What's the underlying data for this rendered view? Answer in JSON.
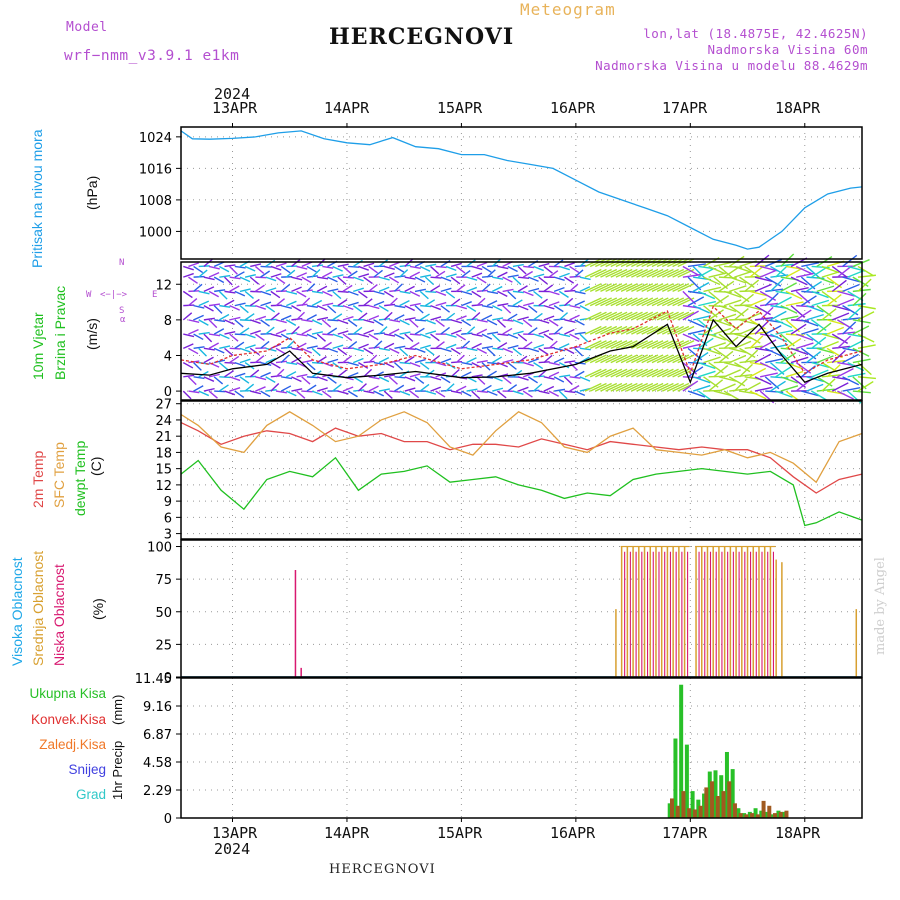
{
  "header": {
    "model_label": "Model",
    "model_name": "wrf−nmm_v3.9.1 e1km",
    "title": "HERCEGNOVI",
    "meteogram": "Meteogram",
    "lonlat": "lon,lat (18.4875E, 42.4625N)",
    "elevation": "Nadmorska Visina 60m",
    "model_elevation": "Nadmorska Visina u modelu 88.4629m"
  },
  "footer": {
    "station": "HERCEGNOVI",
    "credit": "made by Angel"
  },
  "timeline": {
    "year": "2024",
    "days": [
      "13APR",
      "14APR",
      "15APR",
      "16APR",
      "17APR",
      "18APR"
    ]
  },
  "colors": {
    "pressure": "#1e9ee8",
    "wind_speed": "#000000",
    "wind_gust": "#e03030",
    "temp_2m": "#e04848",
    "temp_sfc": "#e0a040",
    "dewpoint": "#20c020",
    "cloud_high": "#20a8e8",
    "cloud_mid": "#d8a030",
    "cloud_low": "#d81870",
    "precip_total": "#28c028",
    "precip_conv": "#e03030",
    "precip_frozen": "#f07828",
    "precip_snow": "#4040e0",
    "precip_graupel": "#30c8c8"
  },
  "labels": {
    "pressure": [
      "Pritisak na nivou mora",
      "(hPa)"
    ],
    "wind": [
      "10m Vjetar",
      "Brzina i Pravac",
      "(m/s)"
    ],
    "wind_compass": [
      "N",
      "S",
      "W",
      "E",
      "<−|−>",
      "α"
    ],
    "temp": [
      "2m Temp",
      "SFC Temp",
      "dewpt Temp",
      "(C)"
    ],
    "cloud": [
      "Visoka Oblacnost",
      "Srednja Oblacnost",
      "Niska Oblacnost",
      "(%)"
    ],
    "precip": [
      "Ukupna Kisa",
      "Konvek.Kisa",
      "Zaledj.Kisa",
      "Snijeg",
      "Grad"
    ],
    "precip_axis": [
      "1hr Precip",
      "(mm)"
    ]
  },
  "chart_data": [
    {
      "type": "line",
      "name": "pressure",
      "ylabel": "(hPa)",
      "yticks": [
        1000,
        1008,
        1016,
        1024
      ],
      "ylim": [
        993,
        1026.5
      ],
      "xlim_days": [
        12.55,
        18.5
      ],
      "grid": true,
      "series": [
        {
          "name": "Pritisak na nivou mora",
          "x": [
            12.55,
            12.65,
            12.8,
            13.0,
            13.2,
            13.4,
            13.6,
            13.8,
            14.0,
            14.2,
            14.4,
            14.6,
            14.8,
            15.0,
            15.2,
            15.4,
            15.6,
            15.8,
            16.0,
            16.2,
            16.4,
            16.6,
            16.8,
            17.0,
            17.2,
            17.4,
            17.5,
            17.6,
            17.8,
            18.0,
            18.2,
            18.4,
            18.5
          ],
          "values": [
            1025.5,
            1023.5,
            1023.4,
            1023.6,
            1024,
            1025,
            1025.5,
            1023.5,
            1022.5,
            1022,
            1023.8,
            1021.5,
            1021,
            1019.5,
            1019.5,
            1018,
            1017,
            1016,
            1013,
            1010,
            1008,
            1006,
            1004,
            1001,
            998,
            996.5,
            995.5,
            996,
            1000,
            1006,
            1009.5,
            1011,
            1011.3
          ]
        }
      ]
    },
    {
      "type": "line",
      "name": "wind",
      "ylabel": "(m/s)",
      "yticks": [
        0,
        4,
        8,
        12
      ],
      "ylim": [
        -1,
        14.5
      ],
      "grid": true,
      "series": [
        {
          "name": "speed",
          "x": [
            12.55,
            12.8,
            13.0,
            13.3,
            13.5,
            13.7,
            14.0,
            14.3,
            14.6,
            15.0,
            15.3,
            15.6,
            16.0,
            16.3,
            16.5,
            16.8,
            17.0,
            17.2,
            17.4,
            17.6,
            17.8,
            18.0,
            18.2,
            18.5
          ],
          "values": [
            2,
            1.8,
            2.5,
            3,
            4.5,
            2,
            1.5,
            1.8,
            2.2,
            1.5,
            1.6,
            2,
            3,
            4.5,
            5,
            7.5,
            1,
            8,
            5,
            7.5,
            4,
            1,
            2,
            3
          ]
        },
        {
          "name": "gust",
          "x": [
            12.55,
            12.8,
            13.0,
            13.3,
            13.5,
            13.7,
            14.0,
            14.3,
            14.6,
            15.0,
            15.3,
            15.6,
            16.0,
            16.3,
            16.5,
            16.8,
            17.0,
            17.2,
            17.4,
            17.6,
            17.8,
            18.0,
            18.2,
            18.5
          ],
          "values": [
            3.5,
            3,
            4,
            4.5,
            6,
            3.5,
            2.5,
            3,
            4,
            2.5,
            3,
            3.5,
            5,
            6.5,
            7,
            9,
            2,
            9.5,
            7,
            9,
            6,
            2,
            3.5,
            4.5
          ]
        }
      ]
    },
    {
      "type": "line",
      "name": "temperature",
      "ylabel": "(C)",
      "yticks": [
        3,
        6,
        9,
        12,
        15,
        18,
        21,
        24,
        27
      ],
      "ylim": [
        2,
        27.5
      ],
      "grid": true,
      "series": [
        {
          "name": "2m Temp",
          "x": [
            12.55,
            12.7,
            12.9,
            13.1,
            13.3,
            13.5,
            13.7,
            13.9,
            14.1,
            14.3,
            14.5,
            14.7,
            14.9,
            15.1,
            15.3,
            15.5,
            15.7,
            15.9,
            16.1,
            16.3,
            16.5,
            16.7,
            16.9,
            17.1,
            17.3,
            17.5,
            17.7,
            17.9,
            18.1,
            18.3,
            18.5
          ],
          "values": [
            23.5,
            22,
            19.5,
            21,
            22,
            21.5,
            20,
            22.5,
            21,
            21.5,
            20,
            20,
            18.5,
            19.5,
            19.5,
            19,
            20.5,
            19.5,
            18.5,
            20,
            19.5,
            19,
            18.5,
            19,
            18.5,
            18.5,
            17,
            13.5,
            10.5,
            13,
            14
          ]
        },
        {
          "name": "SFC Temp",
          "x": [
            12.55,
            12.7,
            12.9,
            13.1,
            13.3,
            13.5,
            13.7,
            13.9,
            14.1,
            14.3,
            14.5,
            14.7,
            14.9,
            15.1,
            15.3,
            15.5,
            15.7,
            15.9,
            16.1,
            16.3,
            16.5,
            16.7,
            16.9,
            17.1,
            17.3,
            17.5,
            17.7,
            17.9,
            18.1,
            18.3,
            18.5
          ],
          "values": [
            25,
            23,
            19,
            18,
            23,
            25.5,
            23,
            20,
            21,
            24,
            25.5,
            23.5,
            19,
            17.5,
            22,
            25.5,
            23.5,
            19,
            18,
            21,
            22.5,
            18.5,
            18,
            17.5,
            18.5,
            17,
            18,
            16,
            12.5,
            20,
            21.5
          ]
        },
        {
          "name": "dewpt Temp",
          "x": [
            12.55,
            12.7,
            12.9,
            13.1,
            13.3,
            13.5,
            13.7,
            13.9,
            14.1,
            14.3,
            14.5,
            14.7,
            14.9,
            15.1,
            15.3,
            15.5,
            15.7,
            15.9,
            16.1,
            16.3,
            16.5,
            16.7,
            16.9,
            17.1,
            17.3,
            17.5,
            17.7,
            17.9,
            18.0,
            18.1,
            18.3,
            18.5
          ],
          "values": [
            14,
            16.5,
            11,
            7.5,
            13,
            14.5,
            13.5,
            17,
            11,
            14,
            14.5,
            15.5,
            12.5,
            13,
            13.5,
            12,
            11,
            9.5,
            10.5,
            10,
            13,
            14,
            14.5,
            15,
            14.5,
            14,
            14.5,
            12,
            4.5,
            5,
            7,
            5.5
          ]
        }
      ]
    },
    {
      "type": "bar",
      "name": "cloud",
      "ylabel": "(%)",
      "yticks": [
        0,
        25,
        50,
        75,
        100
      ],
      "ylim": [
        0,
        105
      ],
      "grid": true,
      "series": [
        {
          "name": "Niska Oblacnost",
          "x": [
            13.55,
            13.6
          ],
          "values": [
            82,
            7
          ]
        },
        {
          "name": "Srednja Oblacnost",
          "x": [
            16.35,
            16.4,
            16.45,
            16.5,
            16.55,
            16.6,
            16.65,
            16.7,
            16.75,
            16.8,
            16.85,
            16.9,
            16.95,
            17.05,
            17.1,
            17.15,
            17.2,
            17.25,
            17.3,
            17.35,
            17.4,
            17.45,
            17.5,
            17.55,
            17.6,
            17.65,
            17.7,
            17.75,
            17.8,
            18.45
          ],
          "values": [
            52,
            100,
            100,
            100,
            100,
            100,
            100,
            100,
            100,
            100,
            100,
            100,
            100,
            100,
            100,
            100,
            100,
            100,
            100,
            100,
            100,
            100,
            100,
            100,
            100,
            100,
            100,
            90,
            88,
            52
          ]
        }
      ]
    },
    {
      "type": "bar",
      "name": "precipitation",
      "ylabel": "(mm)",
      "yticks": [
        0,
        2.29,
        4.58,
        6.87,
        9.16,
        11.45
      ],
      "ylim": [
        0,
        11.45
      ],
      "grid": true,
      "series": [
        {
          "name": "Ukupna Kisa",
          "x": [
            16.82,
            16.87,
            16.92,
            16.97,
            17.02,
            17.07,
            17.12,
            17.17,
            17.22,
            17.27,
            17.32,
            17.37,
            17.42,
            17.47,
            17.52,
            17.57,
            17.62,
            17.67,
            17.72,
            17.77,
            17.82
          ],
          "values": [
            1.2,
            6.5,
            10.9,
            6.0,
            2.2,
            1.5,
            2.0,
            3.8,
            3.9,
            3.5,
            5.4,
            4.0,
            0.8,
            0.4,
            0.5,
            0.8,
            0.6,
            0.5,
            0.3,
            0.6,
            0.5
          ]
        },
        {
          "name": "Konvek.Kisa",
          "x": [
            16.84,
            16.89,
            16.94,
            16.99,
            17.04,
            17.09,
            17.14,
            17.19,
            17.24,
            17.29,
            17.34,
            17.39,
            17.44,
            17.49,
            17.54,
            17.59,
            17.64,
            17.69,
            17.74,
            17.79,
            17.84
          ],
          "values": [
            1.6,
            1.0,
            2.2,
            0.8,
            0.7,
            1.0,
            2.5,
            3.0,
            1.8,
            2.2,
            3.0,
            1.2,
            0.4,
            0.3,
            0.4,
            0.3,
            1.4,
            1.0,
            0.4,
            0.5,
            0.6
          ]
        }
      ]
    }
  ]
}
